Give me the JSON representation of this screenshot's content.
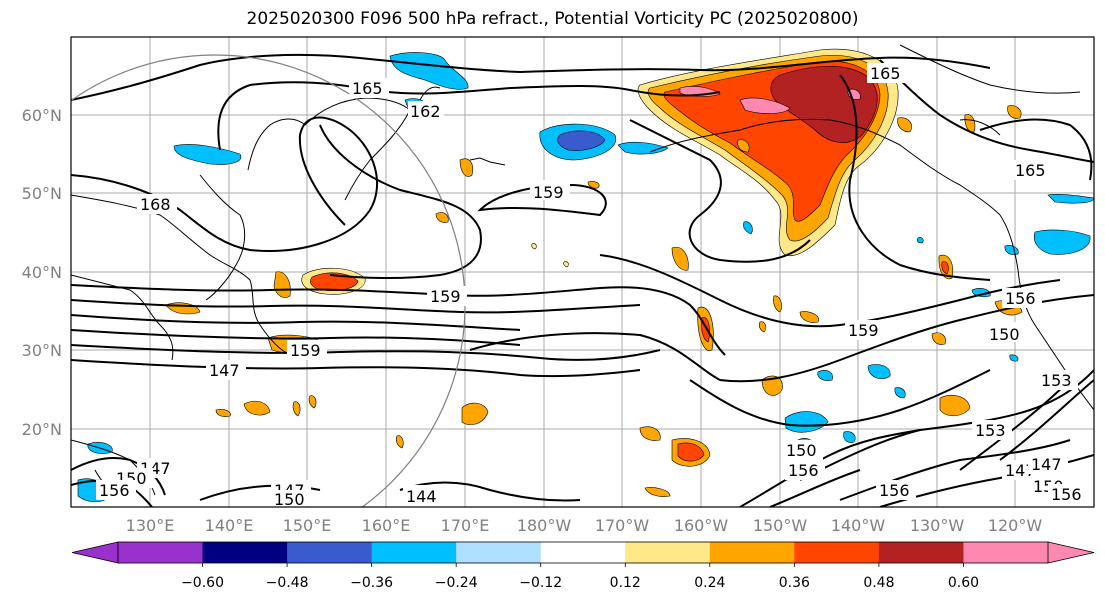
{
  "title": "2025020300 F096 500 hPa refract., Potential Vorticity PC (2025020800)",
  "map": {
    "lat_labels": [
      "60°N",
      "50°N",
      "40°N",
      "30°N",
      "20°N"
    ],
    "lon_labels": [
      "130°E",
      "140°E",
      "150°E",
      "160°E",
      "170°E",
      "180°W",
      "170°W",
      "160°W",
      "150°W",
      "140°W",
      "130°W",
      "120°W"
    ],
    "contour_labels": [
      "165",
      "162",
      "165",
      "168",
      "159",
      "159",
      "165",
      "159",
      "159",
      "156",
      "150",
      "153",
      "147",
      "147",
      "150",
      "156",
      "153",
      "150",
      "147",
      "150",
      "156",
      "147",
      "144",
      "150",
      "147",
      "156",
      "156"
    ]
  },
  "colorbar": {
    "tick_labels": [
      "−0.60",
      "−0.48",
      "−0.36",
      "−0.24",
      "−0.12",
      "0.12",
      "0.24",
      "0.36",
      "0.48",
      "0.60"
    ],
    "colors": [
      "#9932cc",
      "#000080",
      "#3a5bcd",
      "#00bfff",
      "#b0e0ff",
      "#ffffff",
      "#ffe88a",
      "#ffa500",
      "#ff4500",
      "#b22222",
      "#ff88b0"
    ]
  }
}
